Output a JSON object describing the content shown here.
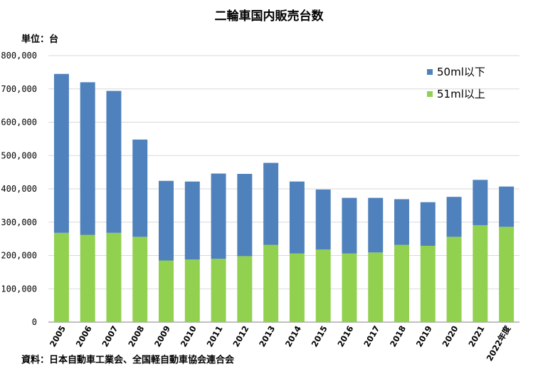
{
  "chart_data": {
    "type": "bar",
    "stacked": true,
    "title": "二輪車国内販売台数",
    "unit_label": "単位：台",
    "source": "資料：日本自動車工業会、全国軽自動車協会連合会",
    "categories": [
      "2005",
      "2006",
      "2007",
      "2008",
      "2009",
      "2010",
      "2011",
      "2012",
      "2013",
      "2014",
      "2015",
      "2016",
      "2017",
      "2018",
      "2019",
      "2020",
      "2021",
      "2022年度"
    ],
    "series": [
      {
        "name": "51ml以上",
        "color": "#92d050",
        "values": [
          268000,
          262000,
          268000,
          256000,
          185000,
          188000,
          190000,
          198000,
          232000,
          206000,
          218000,
          206000,
          209000,
          232000,
          229000,
          256000,
          291000,
          286000
        ]
      },
      {
        "name": "50ml以下",
        "color": "#4f81bd",
        "values": [
          477000,
          458000,
          426000,
          292000,
          239000,
          234000,
          256000,
          247000,
          246000,
          216000,
          180000,
          167000,
          164000,
          137000,
          131000,
          120000,
          136000,
          121000
        ]
      }
    ],
    "legend_order": [
      "50ml以下",
      "51ml以上"
    ],
    "legend_position": "top-right",
    "ylim": [
      0,
      800000
    ],
    "yticks": [
      "0",
      "100,000",
      "200,000",
      "300,000",
      "400,000",
      "500,000",
      "600,000",
      "700,000",
      "800,000"
    ],
    "grid": true
  }
}
